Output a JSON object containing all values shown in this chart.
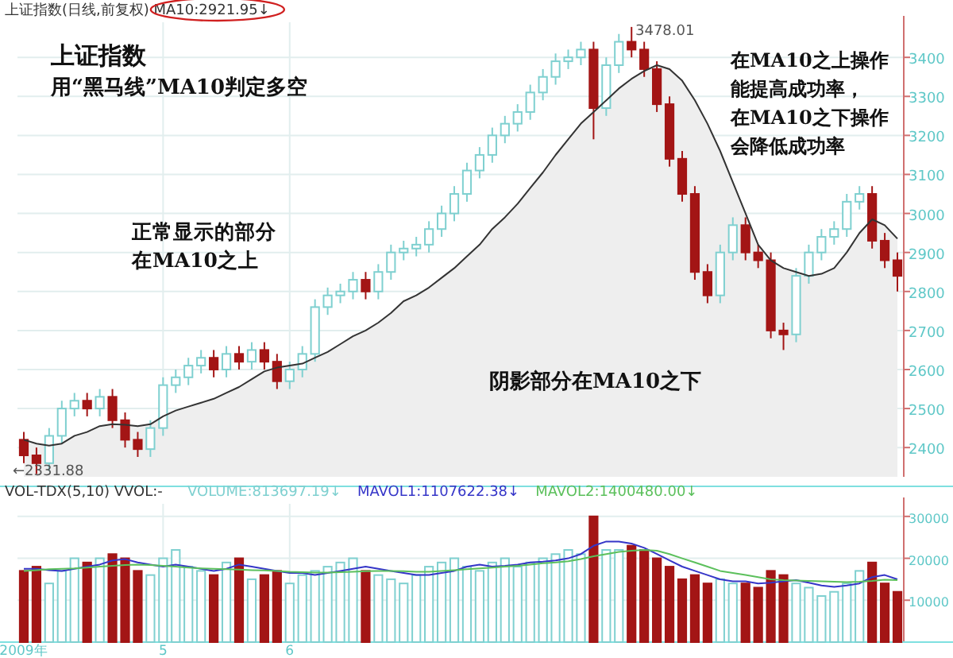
{
  "chart_data": [
    {
      "type": "candlestick",
      "title": "上证指数(日线,前复权)  MA10:2921.95↓",
      "categories": [
        null,
        null,
        null,
        null,
        null,
        null,
        null,
        null,
        null,
        null,
        null,
        null,
        null,
        null,
        null,
        null,
        null,
        null,
        null,
        null,
        null,
        null,
        null,
        null,
        null,
        null,
        null,
        null,
        null,
        null,
        null,
        null,
        null,
        null,
        null,
        null,
        null,
        null,
        null,
        null,
        null,
        null,
        null,
        null,
        null,
        null,
        null,
        null,
        null,
        null,
        null,
        null,
        null,
        null,
        null,
        null,
        null,
        null,
        null,
        null,
        null,
        null,
        null,
        null,
        null,
        null,
        null,
        null,
        null,
        null
      ],
      "ohlc": [
        [
          2420,
          2440,
          2360,
          2380
        ],
        [
          2380,
          2400,
          2331.88,
          2360
        ],
        [
          2360,
          2450,
          2340,
          2430
        ],
        [
          2430,
          2520,
          2410,
          2500
        ],
        [
          2500,
          2540,
          2480,
          2520
        ],
        [
          2520,
          2540,
          2480,
          2500
        ],
        [
          2500,
          2550,
          2480,
          2530
        ],
        [
          2530,
          2550,
          2450,
          2470
        ],
        [
          2470,
          2490,
          2400,
          2420
        ],
        [
          2420,
          2440,
          2376,
          2396
        ],
        [
          2396,
          2470,
          2376,
          2450
        ],
        [
          2450,
          2580,
          2430,
          2560
        ],
        [
          2560,
          2600,
          2540,
          2580
        ],
        [
          2580,
          2630,
          2560,
          2610
        ],
        [
          2610,
          2650,
          2590,
          2630
        ],
        [
          2630,
          2650,
          2580,
          2600
        ],
        [
          2600,
          2660,
          2580,
          2640
        ],
        [
          2640,
          2660,
          2600,
          2620
        ],
        [
          2620,
          2670,
          2600,
          2650
        ],
        [
          2650,
          2670,
          2600,
          2620
        ],
        [
          2620,
          2640,
          2550,
          2570
        ],
        [
          2570,
          2620,
          2550,
          2600
        ],
        [
          2600,
          2660,
          2580,
          2640
        ],
        [
          2640,
          2780,
          2620,
          2760
        ],
        [
          2760,
          2810,
          2740,
          2790
        ],
        [
          2790,
          2820,
          2770,
          2800
        ],
        [
          2800,
          2850,
          2780,
          2830
        ],
        [
          2830,
          2850,
          2780,
          2800
        ],
        [
          2800,
          2870,
          2780,
          2850
        ],
        [
          2850,
          2920,
          2830,
          2900
        ],
        [
          2900,
          2930,
          2880,
          2910
        ],
        [
          2910,
          2940,
          2890,
          2920
        ],
        [
          2920,
          2980,
          2900,
          2960
        ],
        [
          2960,
          3020,
          2940,
          3000
        ],
        [
          3000,
          3070,
          2980,
          3050
        ],
        [
          3050,
          3130,
          3030,
          3110
        ],
        [
          3110,
          3170,
          3090,
          3150
        ],
        [
          3150,
          3220,
          3130,
          3200
        ],
        [
          3200,
          3250,
          3180,
          3230
        ],
        [
          3230,
          3280,
          3210,
          3260
        ],
        [
          3260,
          3330,
          3240,
          3310
        ],
        [
          3310,
          3370,
          3290,
          3350
        ],
        [
          3350,
          3410,
          3330,
          3390
        ],
        [
          3390,
          3420,
          3370,
          3400
        ],
        [
          3400,
          3440,
          3380,
          3420
        ],
        [
          3420,
          3440,
          3190,
          3270
        ],
        [
          3270,
          3400,
          3250,
          3380
        ],
        [
          3380,
          3460,
          3360,
          3440
        ],
        [
          3440,
          3478.01,
          3400,
          3420
        ],
        [
          3420,
          3440,
          3350,
          3370
        ],
        [
          3370,
          3390,
          3260,
          3280
        ],
        [
          3280,
          3300,
          3120,
          3140
        ],
        [
          3140,
          3160,
          3030,
          3050
        ],
        [
          3050,
          3070,
          2830,
          2850
        ],
        [
          2850,
          2870,
          2770,
          2790
        ],
        [
          2790,
          2920,
          2770,
          2900
        ],
        [
          2900,
          2990,
          2880,
          2970
        ],
        [
          2970,
          2990,
          2880,
          2900
        ],
        [
          2900,
          2920,
          2860,
          2880
        ],
        [
          2880,
          2900,
          2680,
          2700
        ],
        [
          2700,
          2720,
          2650,
          2690
        ],
        [
          2690,
          2860,
          2670,
          2840
        ],
        [
          2840,
          2920,
          2820,
          2900
        ],
        [
          2900,
          2960,
          2880,
          2940
        ],
        [
          2940,
          2980,
          2920,
          2960
        ],
        [
          2960,
          3050,
          2940,
          3030
        ],
        [
          3030,
          3070,
          3010,
          3050
        ],
        [
          3050,
          3070,
          2910,
          2930
        ],
        [
          2930,
          2950,
          2860,
          2880
        ],
        [
          2880,
          2900,
          2800,
          2840
        ]
      ],
      "colors": [
        "#a31515",
        "#a31515",
        "#7fd0d0",
        "#7fd0d0",
        "#7fd0d0",
        "#a31515",
        "#7fd0d0",
        "#a31515",
        "#a31515",
        "#a31515",
        "#7fd0d0",
        "#7fd0d0",
        "#7fd0d0",
        "#7fd0d0",
        "#7fd0d0",
        "#a31515",
        "#7fd0d0",
        "#a31515",
        "#7fd0d0",
        "#a31515",
        "#a31515",
        "#7fd0d0",
        "#7fd0d0",
        "#7fd0d0",
        "#7fd0d0",
        "#7fd0d0",
        "#7fd0d0",
        "#a31515",
        "#7fd0d0",
        "#7fd0d0",
        "#7fd0d0",
        "#7fd0d0",
        "#7fd0d0",
        "#7fd0d0",
        "#7fd0d0",
        "#7fd0d0",
        "#7fd0d0",
        "#7fd0d0",
        "#7fd0d0",
        "#7fd0d0",
        "#7fd0d0",
        "#7fd0d0",
        "#7fd0d0",
        "#7fd0d0",
        "#7fd0d0",
        "#a31515",
        "#7fd0d0",
        "#7fd0d0",
        "#a31515",
        "#a31515",
        "#a31515",
        "#a31515",
        "#a31515",
        "#a31515",
        "#a31515",
        "#7fd0d0",
        "#7fd0d0",
        "#a31515",
        "#a31515",
        "#a31515",
        "#a31515",
        "#7fd0d0",
        "#7fd0d0",
        "#7fd0d0",
        "#7fd0d0",
        "#7fd0d0",
        "#7fd0d0",
        "#a31515",
        "#a31515",
        "#a31515"
      ],
      "series": [
        {
          "type": "area",
          "color": "#333333",
          "values": [
            2420,
            2410,
            2405,
            2410,
            2430,
            2440,
            2455,
            2460,
            2458,
            2455,
            2460,
            2480,
            2495,
            2505,
            2515,
            2525,
            2540,
            2555,
            2575,
            2595,
            2605,
            2610,
            2615,
            2630,
            2645,
            2665,
            2685,
            2700,
            2720,
            2745,
            2775,
            2790,
            2810,
            2835,
            2860,
            2890,
            2920,
            2960,
            2990,
            3025,
            3065,
            3105,
            3150,
            3190,
            3230,
            3260,
            3290,
            3320,
            3345,
            3365,
            3380,
            3370,
            3340,
            3290,
            3230,
            3160,
            3080,
            3000,
            2920,
            2880,
            2860,
            2850,
            2840,
            2845,
            2860,
            2900,
            2950,
            2985,
            2970,
            2935
          ]
        }
      ],
      "ylim": [
        2325,
        3490
      ],
      "yticks": [
        2400,
        2500,
        2600,
        2700,
        2800,
        2900,
        3000,
        3100,
        3200,
        3300,
        3400
      ],
      "grid": true,
      "tick_labels": "y",
      "annotations": [
        "上证指数",
        "用“黑马线”MA10判定多空",
        "正常显示的部分",
        "在MA10之上",
        "在MA10之上操作",
        "能提高成功率，",
        "在MA10之下操作",
        "会降低成功率",
        "阴影部分在MA10之下",
        "3478.01",
        "←2331.88"
      ]
    },
    {
      "type": "bar",
      "title": "VOL-TDX(5,10) VVOL:-",
      "categories": [
        "2009年",
        null,
        null,
        null,
        null,
        null,
        null,
        null,
        null,
        null,
        null,
        "5",
        null,
        null,
        null,
        null,
        null,
        null,
        null,
        null,
        null,
        "6",
        null,
        null,
        null,
        null,
        null,
        null,
        null,
        null,
        null,
        null,
        null,
        null,
        null,
        null,
        null,
        null,
        null,
        null,
        null,
        null,
        null,
        null,
        null,
        null,
        null,
        null,
        null,
        null,
        null,
        null,
        null,
        null,
        null,
        null,
        null,
        null,
        null,
        null,
        null,
        null,
        null,
        null,
        null,
        null,
        null,
        null,
        null,
        null
      ],
      "series": [
        {
          "name": "VOLUME:813697.19↓",
          "type": "bar",
          "color": "#7fd0d0",
          "colors": [
            "#a31515",
            "#a31515",
            "#7fd0d0",
            "#7fd0d0",
            "#7fd0d0",
            "#a31515",
            "#7fd0d0",
            "#a31515",
            "#a31515",
            "#a31515",
            "#7fd0d0",
            "#7fd0d0",
            "#7fd0d0",
            "#7fd0d0",
            "#7fd0d0",
            "#a31515",
            "#7fd0d0",
            "#a31515",
            "#7fd0d0",
            "#a31515",
            "#a31515",
            "#7fd0d0",
            "#7fd0d0",
            "#7fd0d0",
            "#7fd0d0",
            "#7fd0d0",
            "#7fd0d0",
            "#a31515",
            "#7fd0d0",
            "#7fd0d0",
            "#7fd0d0",
            "#7fd0d0",
            "#7fd0d0",
            "#7fd0d0",
            "#7fd0d0",
            "#7fd0d0",
            "#7fd0d0",
            "#7fd0d0",
            "#7fd0d0",
            "#7fd0d0",
            "#7fd0d0",
            "#7fd0d0",
            "#7fd0d0",
            "#7fd0d0",
            "#7fd0d0",
            "#a31515",
            "#7fd0d0",
            "#7fd0d0",
            "#a31515",
            "#a31515",
            "#a31515",
            "#a31515",
            "#a31515",
            "#a31515",
            "#a31515",
            "#7fd0d0",
            "#7fd0d0",
            "#a31515",
            "#a31515",
            "#a31515",
            "#a31515",
            "#7fd0d0",
            "#7fd0d0",
            "#7fd0d0",
            "#7fd0d0",
            "#7fd0d0",
            "#7fd0d0",
            "#a31515",
            "#a31515",
            "#a31515"
          ],
          "values": [
            17000,
            18000,
            14000,
            17000,
            20000,
            19000,
            20000,
            21000,
            20000,
            17000,
            16000,
            20000,
            22000,
            18000,
            17000,
            16000,
            19000,
            20000,
            15000,
            16000,
            17000,
            14000,
            16000,
            17000,
            18000,
            19000,
            20000,
            17000,
            16000,
            15000,
            14000,
            16000,
            18000,
            19000,
            20000,
            18000,
            17000,
            19000,
            20000,
            18000,
            19000,
            20000,
            21000,
            22000,
            21000,
            30000,
            22000,
            22000,
            23000,
            22000,
            20000,
            18000,
            15000,
            16000,
            14000,
            15000,
            14000,
            14000,
            13000,
            17000,
            16000,
            14000,
            13000,
            11000,
            12000,
            14000,
            17000,
            19000,
            14000,
            12000
          ]
        },
        {
          "name": "MAVOL1:1107622.38↓",
          "type": "line",
          "color": "#3535c8",
          "values": [
            17500,
            17500,
            17200,
            17000,
            17500,
            18000,
            18500,
            19500,
            19800,
            19000,
            18500,
            18000,
            18500,
            18000,
            17500,
            17000,
            17500,
            18500,
            18000,
            17500,
            17000,
            16500,
            16500,
            16000,
            16500,
            17000,
            17500,
            18000,
            17500,
            17000,
            16500,
            16000,
            16000,
            16500,
            17000,
            18000,
            18500,
            18000,
            18200,
            18500,
            19000,
            19200,
            19500,
            20000,
            21000,
            23000,
            24000,
            24000,
            23500,
            22500,
            21000,
            19500,
            18000,
            17000,
            16000,
            15000,
            14500,
            14500,
            14000,
            14200,
            14500,
            14800,
            14200,
            13500,
            13200,
            13500,
            14000,
            15500,
            16000,
            15000
          ]
        },
        {
          "name": "MAVOL2:1400480.00↓",
          "type": "line",
          "color": "#5cc05c",
          "values": [
            17000,
            17200,
            17400,
            17500,
            17600,
            17800,
            18000,
            18200,
            18400,
            18500,
            18400,
            18200,
            18000,
            17800,
            17600,
            17500,
            17400,
            17300,
            17200,
            17100,
            17000,
            16800,
            16700,
            16600,
            16600,
            16700,
            16800,
            16900,
            17000,
            17000,
            16900,
            16800,
            16800,
            17000,
            17200,
            17400,
            17600,
            17800,
            18000,
            18200,
            18500,
            18800,
            19000,
            19300,
            19800,
            20500,
            21000,
            21500,
            21800,
            22000,
            21800,
            21000,
            20000,
            19000,
            18000,
            17000,
            16500,
            16000,
            15500,
            15000,
            14800,
            14700,
            14600,
            14500,
            14400,
            14300,
            14400,
            14600,
            14900,
            14800
          ]
        }
      ],
      "ylim": [
        0,
        33000
      ],
      "yticks": [
        10000,
        20000,
        30000
      ],
      "grid": true,
      "legend": "top left"
    }
  ]
}
